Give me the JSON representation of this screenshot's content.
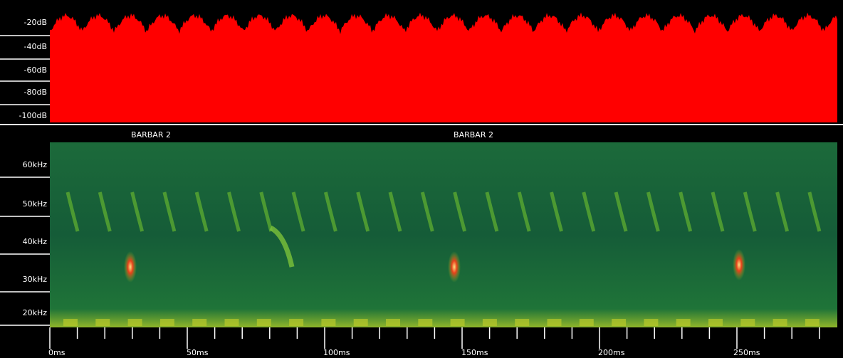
{
  "amplitude_panel": {
    "y_labels": [
      "-20dB",
      "-40dB",
      "-60dB",
      "-80dB",
      "-100dB"
    ]
  },
  "spectrogram": {
    "call_labels": [
      "BARBAR 2",
      "BARBAR 2"
    ],
    "y_labels": [
      "60kHz",
      "50kHz",
      "40kHz",
      "30kHz",
      "20kHz"
    ]
  },
  "time_axis": {
    "labels": [
      "0ms",
      "50ms",
      "100ms",
      "150ms",
      "200ms",
      "250ms"
    ]
  }
}
